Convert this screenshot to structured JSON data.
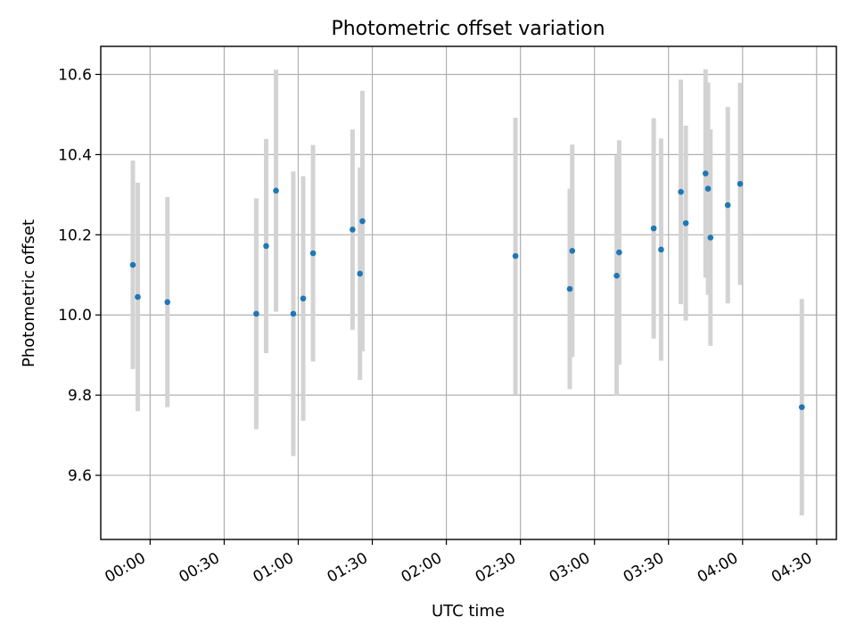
{
  "chart_data": {
    "type": "scatter",
    "title": "Photometric offset variation",
    "xlabel": "UTC time",
    "ylabel": "Photometric offset",
    "xlim": [
      "23:40",
      "04:38"
    ],
    "ylim": [
      9.44,
      10.67
    ],
    "grid": true,
    "x_ticks": [
      "00:00",
      "00:30",
      "01:00",
      "01:30",
      "02:00",
      "02:30",
      "03:00",
      "03:30",
      "04:00",
      "04:30"
    ],
    "y_ticks": [
      "9.6",
      "9.8",
      "10.0",
      "10.2",
      "10.4",
      "10.6"
    ],
    "colors": {
      "point": "#1f77b4",
      "errorbar": "#d3d3d3",
      "grid": "#b0b0b0"
    },
    "series": [
      {
        "x": [
          "23:53",
          "23:55",
          "00:07",
          "00:43",
          "00:47",
          "00:51",
          "00:58",
          "01:02",
          "01:06",
          "01:22",
          "01:25",
          "01:26",
          "02:28",
          "02:50",
          "02:51",
          "03:09",
          "03:10",
          "03:24",
          "03:27",
          "03:35",
          "03:37",
          "03:45",
          "03:46",
          "03:47",
          "03:54",
          "03:59",
          "04:24"
        ],
        "y": [
          10.125,
          10.045,
          10.032,
          10.003,
          10.172,
          10.31,
          10.003,
          10.041,
          10.154,
          10.213,
          10.103,
          10.234,
          10.147,
          10.065,
          10.16,
          10.098,
          10.156,
          10.216,
          10.163,
          10.307,
          10.229,
          10.353,
          10.315,
          10.193,
          10.274,
          10.327,
          9.77
        ],
        "yerr": [
          0.26,
          0.285,
          0.262,
          0.288,
          0.267,
          0.302,
          0.355,
          0.305,
          0.27,
          0.25,
          0.265,
          0.325,
          0.345,
          0.25,
          0.265,
          0.3,
          0.28,
          0.275,
          0.277,
          0.28,
          0.243,
          0.26,
          0.265,
          0.27,
          0.245,
          0.252,
          0.27
        ]
      }
    ]
  }
}
